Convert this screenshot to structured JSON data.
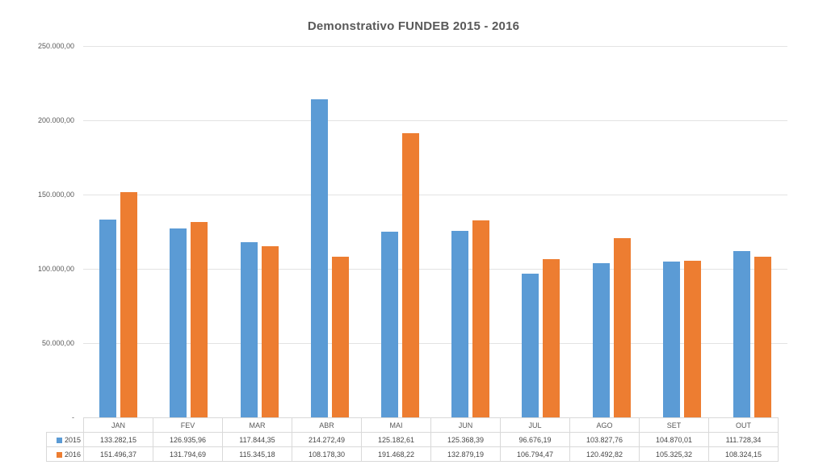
{
  "chart_data": {
    "type": "bar",
    "title": "Demonstrativo FUNDEB 2015 - 2016",
    "categories": [
      "JAN",
      "FEV",
      "MAR",
      "ABR",
      "MAI",
      "JUN",
      "JUL",
      "AGO",
      "SET",
      "OUT"
    ],
    "series": [
      {
        "name": "2015",
        "color": "#5B9BD5",
        "values": [
          133282.15,
          126935.96,
          117844.35,
          214272.49,
          125182.61,
          125368.39,
          96676.19,
          103827.76,
          104870.01,
          111728.34
        ],
        "labels": [
          "133.282,15",
          "126.935,96",
          "117.844,35",
          "214.272,49",
          "125.182,61",
          "125.368,39",
          "96.676,19",
          "103.827,76",
          "104.870,01",
          "111.728,34"
        ]
      },
      {
        "name": "2016",
        "color": "#ED7D31",
        "values": [
          151496.37,
          131794.69,
          115345.18,
          108178.3,
          191468.22,
          132879.19,
          106794.47,
          120492.82,
          105325.32,
          108324.15
        ],
        "labels": [
          "151.496,37",
          "131.794,69",
          "115.345,18",
          "108.178,30",
          "191.468,22",
          "132.879,19",
          "106.794,47",
          "120.492,82",
          "105.325,32",
          "108.324,15"
        ]
      }
    ],
    "y_axis": {
      "min": 0,
      "max": 250000,
      "ticks": [
        {
          "value": 250000,
          "label": "250.000,00"
        },
        {
          "value": 200000,
          "label": "200.000,00"
        },
        {
          "value": 150000,
          "label": "150.000,00"
        },
        {
          "value": 100000,
          "label": "100.000,00"
        },
        {
          "value": 50000,
          "label": "50.000,00"
        },
        {
          "value": 0,
          "label": "-"
        }
      ]
    },
    "grid": true,
    "legend_position": "table-left",
    "colors": {
      "series_2015": "#5B9BD5",
      "series_2016": "#ED7D31",
      "gridline": "#e3e3e3",
      "table_border": "#d9d9d9",
      "text": "#595959",
      "background": "#ffffff"
    }
  }
}
